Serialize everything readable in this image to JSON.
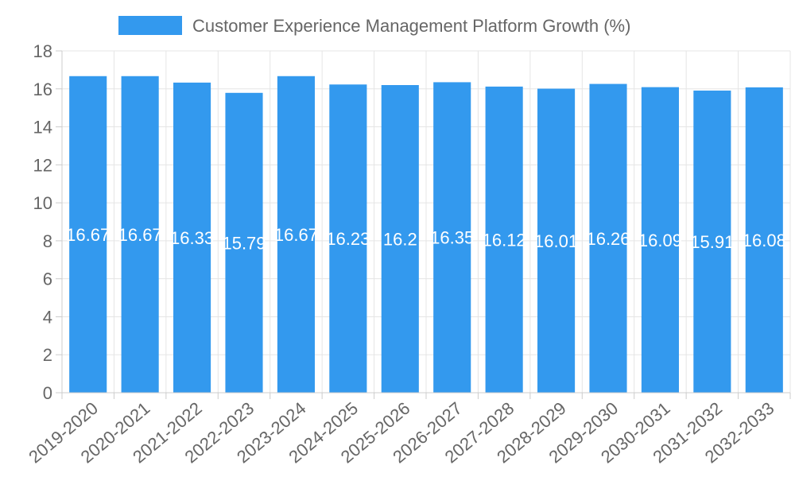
{
  "chart_data": {
    "type": "bar",
    "categories": [
      "2019-2020",
      "2020-2021",
      "2021-2022",
      "2022-2023",
      "2023-2024",
      "2024-2025",
      "2025-2026",
      "2026-2027",
      "2027-2028",
      "2028-2029",
      "2029-2030",
      "2030-2031",
      "2031-2032",
      "2032-2033"
    ],
    "series": [
      {
        "name": "Customer Experience Management Platform Growth (%)",
        "values": [
          16.67,
          16.67,
          16.33,
          15.79,
          16.67,
          16.23,
          16.2,
          16.35,
          16.12,
          16.01,
          16.26,
          16.09,
          15.91,
          16.08
        ]
      }
    ],
    "data_labels": [
      "16.67",
      "16.67",
      "16.33",
      "15.79",
      "16.67",
      "16.23",
      "16.2",
      "16.35",
      "16.12",
      "16.01",
      "16.26",
      "16.09",
      "15.91",
      "16.08"
    ],
    "ylim": [
      0,
      18
    ],
    "yticks": [
      0,
      2,
      4,
      6,
      8,
      10,
      12,
      14,
      16,
      18
    ],
    "grid": true,
    "legend_position": "top",
    "colors": {
      "bar": "#3399ee",
      "grid": "#e5e5e5",
      "axis": "#cccccc",
      "text": "#666666",
      "data_label": "#ffffff"
    }
  }
}
